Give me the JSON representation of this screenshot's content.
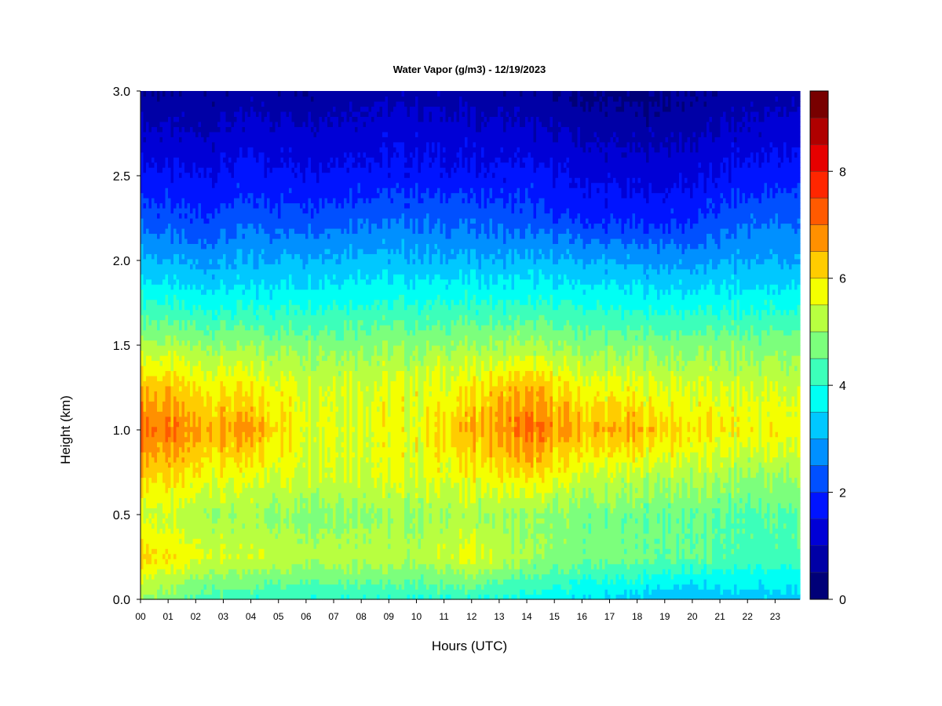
{
  "chart_data": {
    "type": "heatmap",
    "title": "Water Vapor (g/m3) - 12/19/2023",
    "xlabel": "Hours (UTC)",
    "ylabel": "Height (km)",
    "xlim": [
      0,
      23.9
    ],
    "ylim": [
      0,
      3.0
    ],
    "x_ticks": [
      "00",
      "01",
      "02",
      "03",
      "04",
      "05",
      "06",
      "07",
      "08",
      "09",
      "10",
      "11",
      "12",
      "13",
      "14",
      "15",
      "16",
      "17",
      "18",
      "19",
      "20",
      "21",
      "22",
      "23"
    ],
    "y_ticks": [
      "0.0",
      "0.5",
      "1.0",
      "1.5",
      "2.0",
      "2.5",
      "3.0"
    ],
    "heights_km": [
      0.0,
      0.25,
      0.5,
      0.75,
      1.0,
      1.25,
      1.5,
      1.75,
      2.0,
      2.25,
      2.5,
      2.75,
      3.0
    ],
    "hours": [
      0,
      2,
      4,
      6,
      8,
      10,
      12,
      14,
      16,
      18,
      20,
      22,
      23.9
    ],
    "values": [
      [
        5.0,
        4.3,
        4.1,
        4.1,
        4.1,
        4.0,
        4.0,
        3.8,
        3.5,
        3.3,
        3.0,
        3.2,
        3.3
      ],
      [
        6.2,
        5.6,
        5.4,
        5.3,
        5.3,
        5.2,
        5.7,
        5.0,
        4.7,
        4.6,
        4.5,
        4.3,
        4.3
      ],
      [
        5.5,
        5.1,
        5.0,
        4.9,
        5.0,
        5.0,
        5.1,
        4.9,
        4.7,
        4.6,
        4.6,
        4.4,
        4.5
      ],
      [
        6.3,
        5.9,
        5.6,
        5.6,
        5.6,
        5.6,
        5.8,
        6.1,
        5.5,
        5.3,
        5.2,
        5.0,
        5.1
      ],
      [
        7.2,
        6.6,
        6.6,
        5.7,
        5.7,
        5.7,
        6.4,
        7.0,
        6.4,
        6.4,
        6.0,
        5.8,
        5.8
      ],
      [
        6.5,
        6.0,
        5.8,
        5.6,
        5.6,
        5.6,
        5.9,
        6.4,
        5.8,
        5.6,
        5.5,
        5.4,
        5.4
      ],
      [
        5.2,
        5.0,
        4.9,
        4.9,
        4.9,
        4.9,
        5.0,
        5.1,
        4.8,
        4.8,
        4.8,
        4.8,
        4.8
      ],
      [
        4.1,
        3.8,
        3.8,
        3.9,
        4.0,
        4.0,
        4.0,
        4.0,
        3.9,
        3.8,
        3.8,
        3.8,
        3.8
      ],
      [
        3.1,
        2.9,
        3.0,
        3.1,
        3.2,
        3.1,
        3.1,
        3.1,
        3.0,
        2.9,
        2.8,
        3.0,
        3.0
      ],
      [
        2.3,
        2.0,
        2.3,
        2.2,
        2.4,
        2.4,
        2.3,
        2.2,
        1.9,
        1.8,
        1.9,
        2.4,
        2.4
      ],
      [
        1.7,
        1.5,
        1.7,
        1.6,
        1.7,
        1.7,
        1.6,
        1.7,
        1.4,
        1.3,
        1.4,
        1.7,
        1.8
      ],
      [
        1.1,
        1.0,
        1.2,
        1.2,
        1.3,
        1.3,
        1.2,
        1.1,
        0.9,
        0.8,
        0.9,
        1.2,
        1.3
      ],
      [
        0.6,
        0.5,
        0.7,
        0.6,
        0.8,
        0.8,
        0.7,
        0.6,
        0.4,
        0.3,
        0.5,
        0.7,
        0.8
      ]
    ],
    "colorbar": {
      "min": 0,
      "max": 9.5,
      "step": 0.5,
      "ticks": [
        "0",
        "2",
        "4",
        "6",
        "8"
      ],
      "colors": [
        "#000078",
        "#0000A6",
        "#0000D6",
        "#0014FF",
        "#0050FF",
        "#0090FF",
        "#00C8FF",
        "#00FFF4",
        "#3CFFBA",
        "#7CFF7C",
        "#B8FF40",
        "#F4FF00",
        "#FFCC00",
        "#FF9000",
        "#FF5A00",
        "#FF2600",
        "#E60000",
        "#B00000",
        "#780000"
      ]
    }
  }
}
